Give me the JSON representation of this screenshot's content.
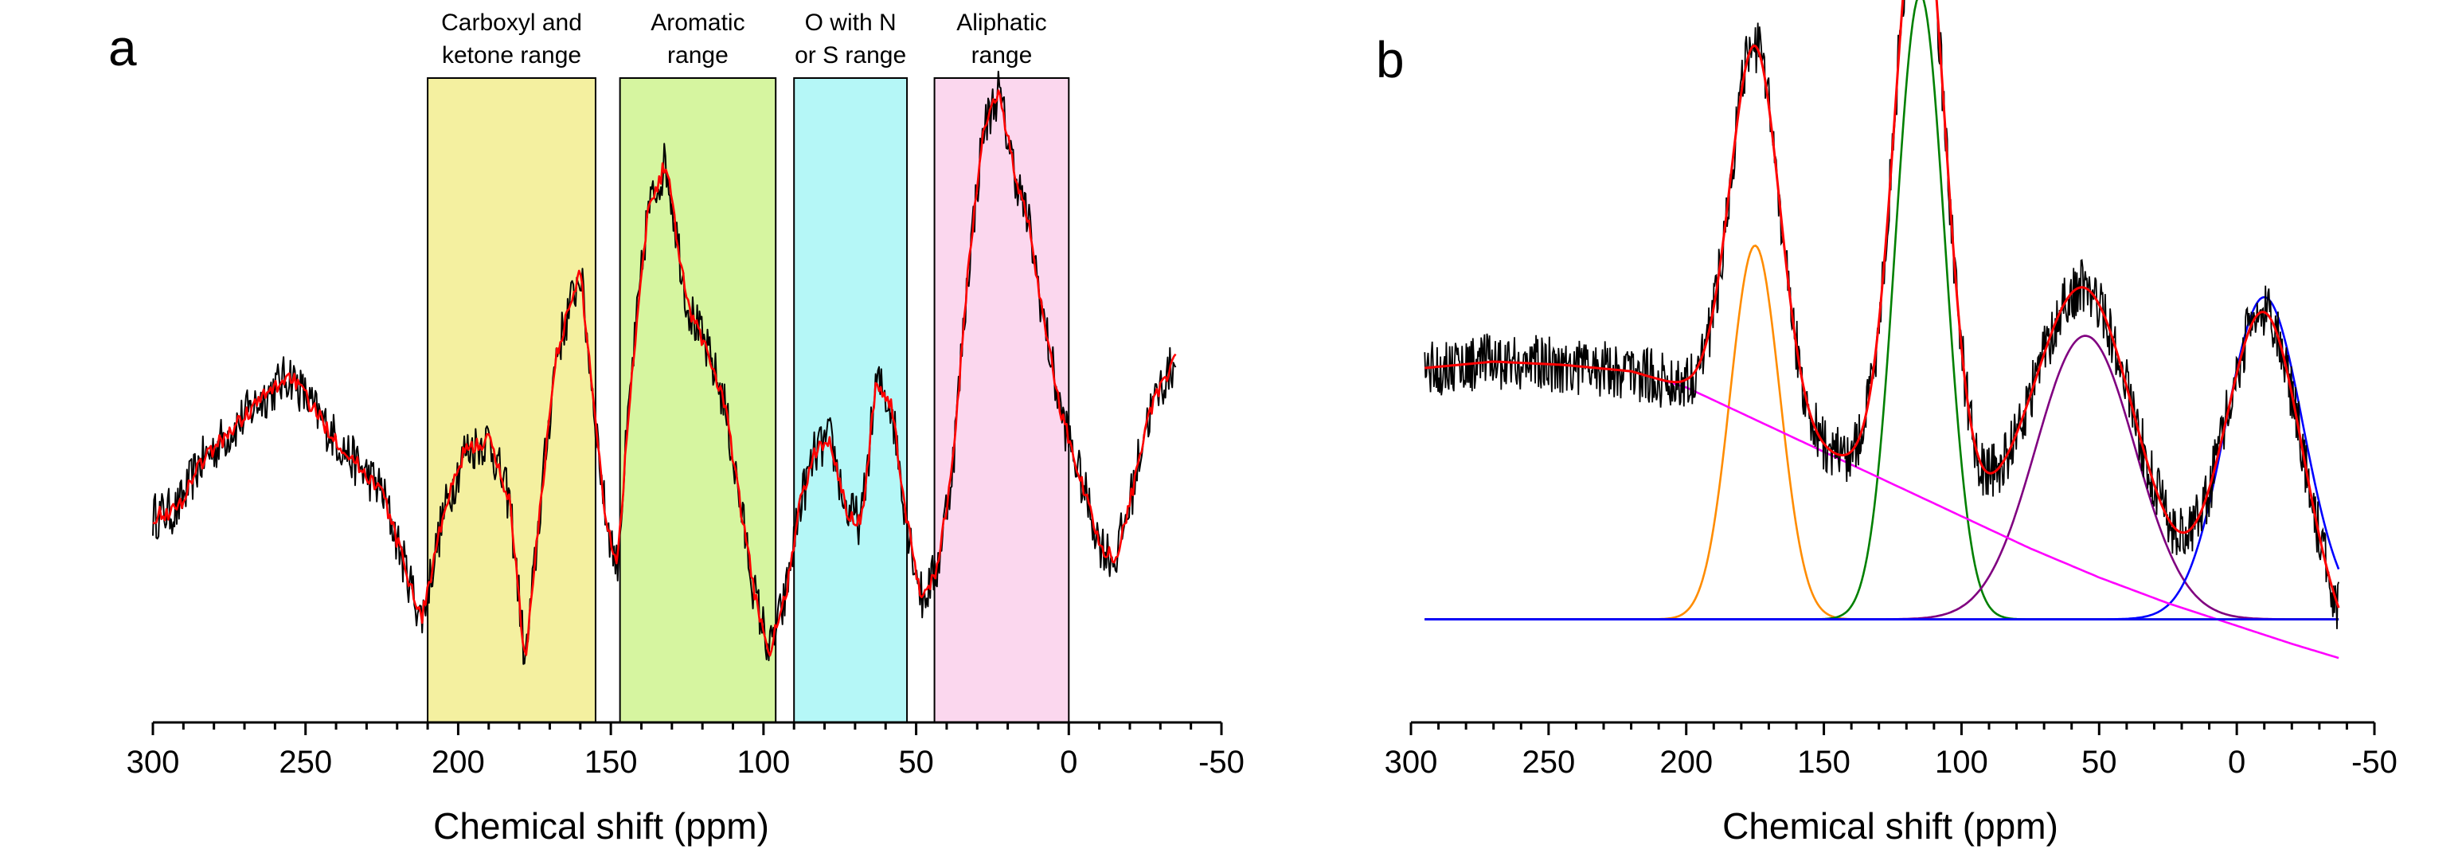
{
  "chart_data": [
    {
      "panel": "a",
      "type": "line",
      "xlabel": "Chemical shift (ppm)",
      "ylabel": "",
      "xlim": [
        300,
        -50
      ],
      "x_ticks": [
        300,
        250,
        200,
        150,
        100,
        50,
        0,
        -50
      ],
      "x_tick_labels": [
        "300",
        "250",
        "200",
        "150",
        "100",
        "50",
        "0",
        "-50"
      ],
      "y_ticks_visible": false,
      "bands": [
        {
          "name": "carboxyl-ketone",
          "label_lines": [
            "Carboxyl and",
            "ketone range"
          ],
          "x_from": 210,
          "x_to": 155,
          "color": "#f4f0a0"
        },
        {
          "name": "aromatic",
          "label_lines": [
            "Aromatic",
            "range"
          ],
          "x_from": 147,
          "x_to": 96,
          "color": "#d6f5a0"
        },
        {
          "name": "o-with-n-or-s",
          "label_lines": [
            "O with N",
            "or S range"
          ],
          "x_from": 90,
          "x_to": 53,
          "color": "#b5f7f7"
        },
        {
          "name": "aliphatic",
          "label_lines": [
            "Aliphatic",
            "range"
          ],
          "x_from": 44,
          "x_to": 0,
          "color": "#fbd7ee"
        }
      ],
      "series": [
        {
          "name": "spectrum",
          "color": "#000000",
          "noisy": true,
          "x": [
            300,
            292,
            285,
            275,
            265,
            255,
            245,
            235,
            225,
            218,
            212,
            205,
            198,
            190,
            183,
            178,
            173,
            168,
            160,
            152,
            148,
            143,
            138,
            132,
            125,
            118,
            113,
            108,
            103,
            98,
            93,
            88,
            83,
            78,
            73,
            68,
            63,
            58,
            53,
            48,
            43,
            38,
            33,
            28,
            23,
            18,
            13,
            8,
            3,
            0,
            -5,
            -10,
            -15,
            -20,
            -25,
            -30,
            -35
          ],
          "y": [
            0.32,
            0.33,
            0.4,
            0.45,
            0.5,
            0.54,
            0.47,
            0.41,
            0.36,
            0.25,
            0.16,
            0.32,
            0.42,
            0.44,
            0.34,
            0.09,
            0.34,
            0.57,
            0.7,
            0.33,
            0.24,
            0.55,
            0.79,
            0.87,
            0.65,
            0.57,
            0.5,
            0.35,
            0.2,
            0.11,
            0.19,
            0.34,
            0.42,
            0.44,
            0.33,
            0.31,
            0.53,
            0.49,
            0.31,
            0.19,
            0.24,
            0.4,
            0.7,
            0.92,
            0.98,
            0.86,
            0.77,
            0.62,
            0.49,
            0.44,
            0.36,
            0.28,
            0.25,
            0.34,
            0.46,
            0.52,
            0.56
          ]
        },
        {
          "name": "smoothed",
          "color": "#ff0000",
          "noisy": false,
          "x": [
            300,
            292,
            285,
            275,
            265,
            255,
            245,
            235,
            225,
            218,
            212,
            205,
            198,
            190,
            183,
            178,
            173,
            168,
            160,
            152,
            148,
            143,
            138,
            132,
            125,
            118,
            113,
            108,
            103,
            98,
            93,
            88,
            83,
            78,
            73,
            68,
            63,
            58,
            53,
            48,
            43,
            38,
            33,
            28,
            23,
            18,
            13,
            8,
            3,
            0,
            -5,
            -10,
            -15,
            -20,
            -25,
            -30,
            -35
          ],
          "y": [
            0.32,
            0.33,
            0.4,
            0.45,
            0.5,
            0.54,
            0.47,
            0.41,
            0.36,
            0.25,
            0.16,
            0.32,
            0.42,
            0.44,
            0.34,
            0.09,
            0.34,
            0.57,
            0.7,
            0.33,
            0.24,
            0.55,
            0.79,
            0.87,
            0.65,
            0.57,
            0.5,
            0.35,
            0.2,
            0.11,
            0.19,
            0.34,
            0.42,
            0.44,
            0.33,
            0.31,
            0.53,
            0.49,
            0.31,
            0.19,
            0.24,
            0.4,
            0.7,
            0.92,
            0.98,
            0.86,
            0.77,
            0.62,
            0.49,
            0.44,
            0.36,
            0.28,
            0.25,
            0.34,
            0.46,
            0.52,
            0.56
          ]
        }
      ]
    },
    {
      "panel": "b",
      "type": "line",
      "xlabel": "Chemical shift (ppm)",
      "ylabel": "",
      "xlim": [
        300,
        -50
      ],
      "x_ticks": [
        300,
        250,
        200,
        150,
        100,
        50,
        0,
        -50
      ],
      "x_tick_labels": [
        "300",
        "250",
        "200",
        "150",
        "100",
        "50",
        "0",
        "-50"
      ],
      "y_ticks_visible": false,
      "baseline": 0.16,
      "background": {
        "name": "background",
        "color": "#ff00ff",
        "x": [
          295,
          270,
          245,
          220,
          200,
          175,
          150,
          125,
          100,
          75,
          50,
          25,
          0,
          -20,
          -37
        ],
        "y": [
          0.55,
          0.56,
          0.555,
          0.545,
          0.52,
          0.47,
          0.42,
          0.37,
          0.32,
          0.27,
          0.225,
          0.185,
          0.15,
          0.122,
          0.1
        ]
      },
      "peaks": [
        {
          "name": "peak-175",
          "color": "#ff8c00",
          "center": 175,
          "width": 9,
          "height": 0.58
        },
        {
          "name": "peak-115",
          "color": "#008000",
          "center": 115,
          "width": 9,
          "height": 0.97
        },
        {
          "name": "peak-55",
          "color": "#800080",
          "center": 55,
          "width": 18,
          "height": 0.44
        },
        {
          "name": "peak-neg10",
          "color": "#0000ff",
          "center": -10,
          "width": 14,
          "height": 0.5
        }
      ],
      "series": [
        {
          "name": "experimental",
          "color": "#000000",
          "noisy": true,
          "x_from": 295,
          "x_to": -37
        },
        {
          "name": "fit-envelope",
          "color": "#ff0000",
          "noisy": false,
          "x_from": 295,
          "x_to": -37
        }
      ]
    }
  ]
}
